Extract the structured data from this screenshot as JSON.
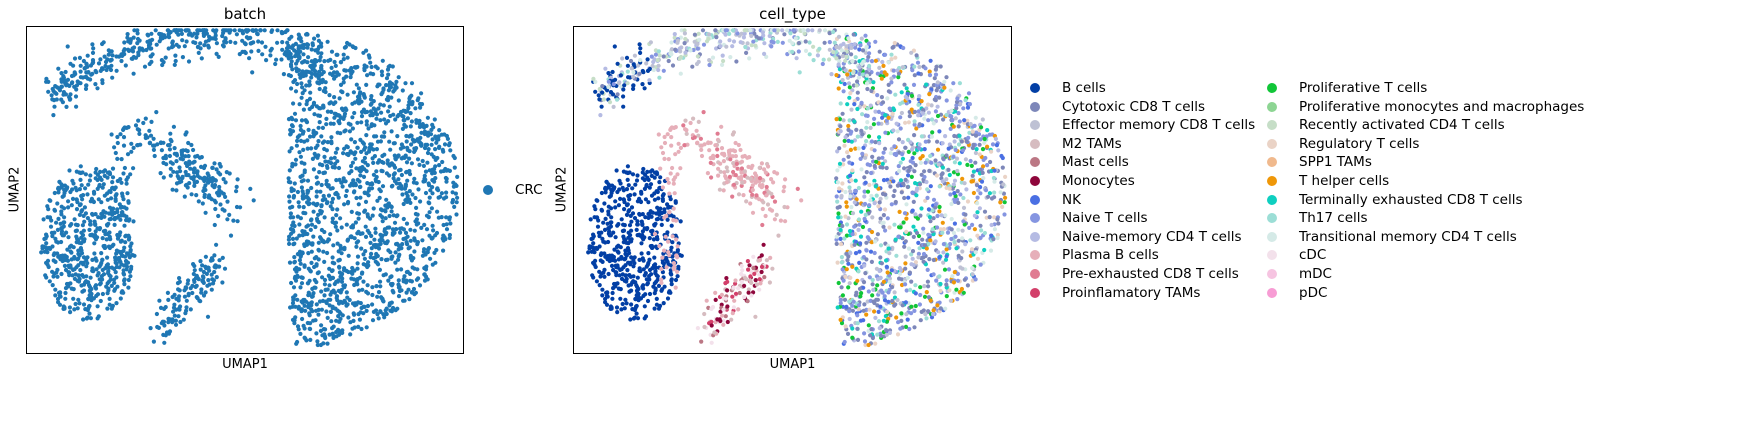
{
  "chart_data": [
    {
      "type": "scatter",
      "title": "batch",
      "xlabel": "UMAP1",
      "ylabel": "UMAP2",
      "ticks": "none",
      "legend_position": "right",
      "legend": [
        {
          "label": "CRC",
          "color": "#1f77b4"
        }
      ]
    },
    {
      "type": "scatter",
      "title": "cell_type",
      "xlabel": "UMAP1",
      "ylabel": "UMAP2",
      "ticks": "none",
      "legend_position": "right",
      "legend": [
        {
          "label": "B cells",
          "color": "#023fa5"
        },
        {
          "label": "Cytotoxic CD8 T cells",
          "color": "#7d87b9"
        },
        {
          "label": "Effector memory CD8 T cells",
          "color": "#bec1d4"
        },
        {
          "label": "M2 TAMs",
          "color": "#d6bcc0"
        },
        {
          "label": "Mast cells",
          "color": "#bb7784"
        },
        {
          "label": "Monocytes",
          "color": "#8e063b"
        },
        {
          "label": "NK",
          "color": "#4a6fe3"
        },
        {
          "label": "Naive T cells",
          "color": "#8595e1"
        },
        {
          "label": "Naive-memory CD4 T cells",
          "color": "#b5bbe3"
        },
        {
          "label": "Plasma B cells",
          "color": "#e6afb9"
        },
        {
          "label": "Pre-exhausted CD8 T cells",
          "color": "#e07b91"
        },
        {
          "label": "Proinflamatory TAMs",
          "color": "#d33f6a"
        },
        {
          "label": "Proliferative T cells",
          "color": "#11c638"
        },
        {
          "label": "Proliferative monocytes and macrophages",
          "color": "#8dd593"
        },
        {
          "label": "Recently activated CD4 T cells",
          "color": "#c6dec7"
        },
        {
          "label": "Regulatory T cells",
          "color": "#ead3c6"
        },
        {
          "label": "SPP1 TAMs",
          "color": "#f0b98d"
        },
        {
          "label": "T helper cells",
          "color": "#ef9708"
        },
        {
          "label": "Terminally exhausted CD8 T cells",
          "color": "#0fcfc0"
        },
        {
          "label": "Th17 cells",
          "color": "#9cded6"
        },
        {
          "label": "Transitional memory CD4 T cells",
          "color": "#d5eae7"
        },
        {
          "label": "cDC",
          "color": "#f3e1eb"
        },
        {
          "label": "mDC",
          "color": "#f6c4e1"
        },
        {
          "label": "pDC",
          "color": "#f79cd4"
        }
      ]
    }
  ]
}
